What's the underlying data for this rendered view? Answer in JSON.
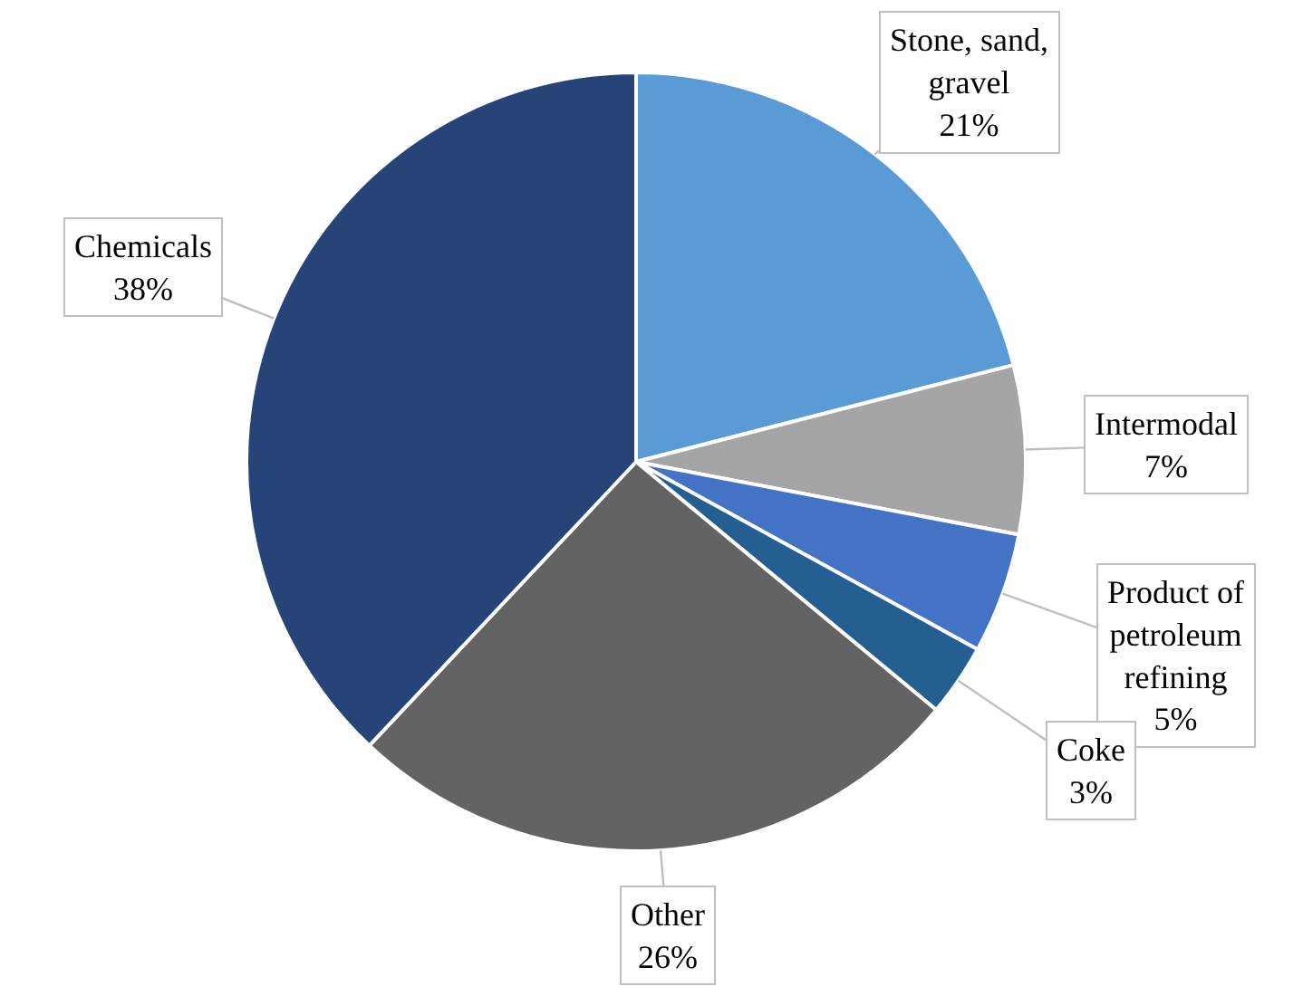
{
  "chart_data": {
    "type": "pie",
    "categories": [
      "Stone, sand, gravel",
      "Intermodal",
      "Product of petroleum refining",
      "Coke",
      "Other",
      "Chemicals"
    ],
    "values": [
      21,
      7,
      5,
      3,
      26,
      38
    ],
    "colors": [
      "#5b9bd5",
      "#a5a5a5",
      "#4472c4",
      "#255e91",
      "#636363",
      "#264478"
    ],
    "value_labels": [
      "21%",
      "7%",
      "5%",
      "3%",
      "26%",
      "38%"
    ],
    "legend": false
  }
}
